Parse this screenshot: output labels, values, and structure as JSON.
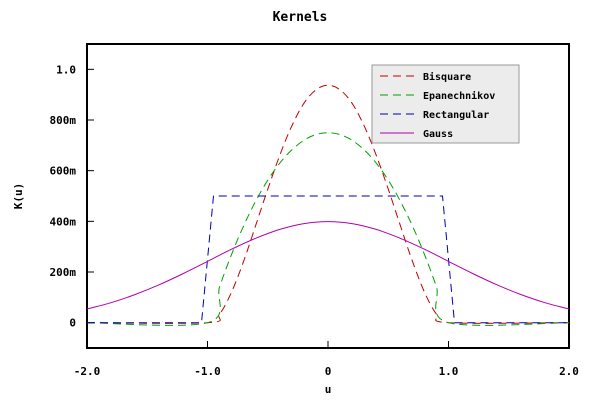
{
  "chart_data": {
    "type": "line",
    "title": "Kernels",
    "xlabel": "u",
    "ylabel": "K(u)",
    "xlim": [
      -2.0,
      2.0
    ],
    "ylim": [
      -0.1,
      1.1
    ],
    "xticks": [
      -2.0,
      -1.0,
      0.0,
      1.0,
      2.0
    ],
    "xtick_labels": [
      "-2.0",
      "-1.0",
      "0",
      "1.0",
      "2.0"
    ],
    "yticks": [
      0,
      0.2,
      0.4,
      0.6,
      0.8,
      1.0
    ],
    "ytick_labels": [
      "0",
      "200m",
      "400m",
      "600m",
      "800m",
      "1.0"
    ],
    "legend_position": "top-right",
    "grid": false,
    "series": [
      {
        "name": "Bisquare",
        "color": "#c00000",
        "style": "dashed",
        "x": [
          -2.0,
          -1.0,
          -0.9,
          -0.8,
          -0.7,
          -0.6,
          -0.5,
          -0.4,
          -0.3,
          -0.2,
          -0.1,
          0.0,
          0.1,
          0.2,
          0.3,
          0.4,
          0.5,
          0.6,
          0.7,
          0.8,
          0.9,
          1.0,
          2.0
        ],
        "values": [
          0,
          0,
          0.034,
          0.121,
          0.243,
          0.384,
          0.527,
          0.661,
          0.777,
          0.866,
          0.919,
          0.9375,
          0.919,
          0.866,
          0.777,
          0.661,
          0.527,
          0.384,
          0.243,
          0.121,
          0.034,
          0,
          0
        ]
      },
      {
        "name": "Epanechnikov",
        "color": "#00a000",
        "style": "dashed",
        "x": [
          -2.0,
          -1.0,
          -0.9,
          -0.8,
          -0.7,
          -0.6,
          -0.5,
          -0.4,
          -0.3,
          -0.2,
          -0.1,
          0.0,
          0.1,
          0.2,
          0.3,
          0.4,
          0.5,
          0.6,
          0.7,
          0.8,
          0.9,
          1.0,
          2.0
        ],
        "values": [
          0,
          0,
          0.1425,
          0.27,
          0.3825,
          0.48,
          0.5625,
          0.63,
          0.6825,
          0.72,
          0.7425,
          0.75,
          0.7425,
          0.72,
          0.6825,
          0.63,
          0.5625,
          0.48,
          0.3825,
          0.27,
          0.1425,
          0,
          0
        ]
      },
      {
        "name": "Rectangular",
        "color": "#0000b0",
        "style": "dashed",
        "x": [
          -2.0,
          -1.05,
          -0.95,
          0.0,
          0.95,
          1.05,
          2.0
        ],
        "values": [
          0,
          0,
          0.5,
          0.5,
          0.5,
          0,
          0
        ]
      },
      {
        "name": "Gauss",
        "color": "#b000b0",
        "style": "solid",
        "x": [
          -2.0,
          -1.8,
          -1.6,
          -1.4,
          -1.2,
          -1.0,
          -0.8,
          -0.6,
          -0.4,
          -0.2,
          0.0,
          0.2,
          0.4,
          0.6,
          0.8,
          1.0,
          1.2,
          1.4,
          1.6,
          1.8,
          2.0
        ],
        "values": [
          0.054,
          0.079,
          0.111,
          0.15,
          0.194,
          0.242,
          0.29,
          0.333,
          0.368,
          0.391,
          0.399,
          0.391,
          0.368,
          0.333,
          0.29,
          0.242,
          0.194,
          0.15,
          0.111,
          0.079,
          0.054
        ]
      }
    ]
  }
}
